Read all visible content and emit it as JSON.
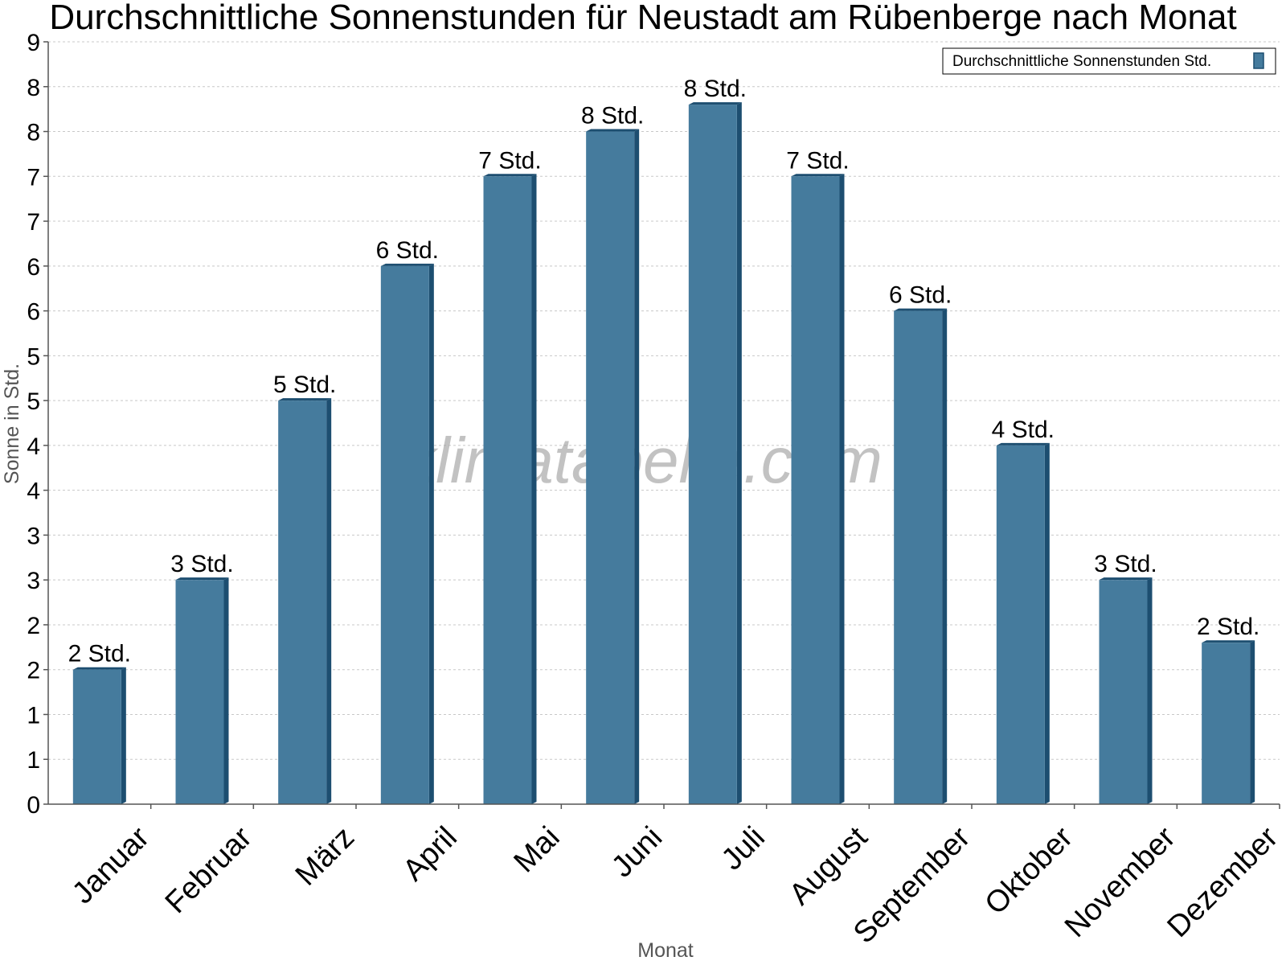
{
  "chart_data": {
    "type": "bar",
    "title": "Durchschnittliche Sonnenstunden für Neustadt am Rübenberge nach Monat",
    "xlabel": "Monat",
    "ylabel": "Sonne in Std.",
    "ylim": [
      0,
      8.5
    ],
    "y_tick_values": [
      0,
      0.5,
      1,
      1.5,
      2,
      2.5,
      3,
      3.5,
      4,
      4.5,
      5,
      5.5,
      6,
      6.5,
      7,
      7.5,
      8,
      8.5
    ],
    "y_tick_labels": [
      "0",
      "1",
      "1",
      "2",
      "2",
      "3",
      "3",
      "4",
      "4",
      "5",
      "5",
      "6",
      "6",
      "7",
      "7",
      "8",
      "8",
      "9"
    ],
    "categories": [
      "Januar",
      "Februar",
      "März",
      "April",
      "Mai",
      "Juni",
      "Juli",
      "August",
      "September",
      "Oktober",
      "November",
      "Dezember"
    ],
    "series": [
      {
        "name": "Durchschnittliche Sonnenstunden Std.",
        "values": [
          1.5,
          2.5,
          4.5,
          6.0,
          7.0,
          7.5,
          7.8,
          7.0,
          5.5,
          4.0,
          2.5,
          1.8
        ],
        "labels": [
          "2 Std.",
          "3 Std.",
          "5 Std.",
          "6 Std.",
          "7 Std.",
          "8 Std.",
          "8 Std.",
          "7 Std.",
          "6 Std.",
          "4 Std.",
          "3 Std.",
          "2 Std."
        ]
      }
    ],
    "colors": {
      "bar": "#457b9d",
      "bar_side": "#1d4e70",
      "bar_top": "#1d4e70"
    },
    "grid": true,
    "legend_position": "top-right",
    "watermark": "klimatabelle.com"
  }
}
